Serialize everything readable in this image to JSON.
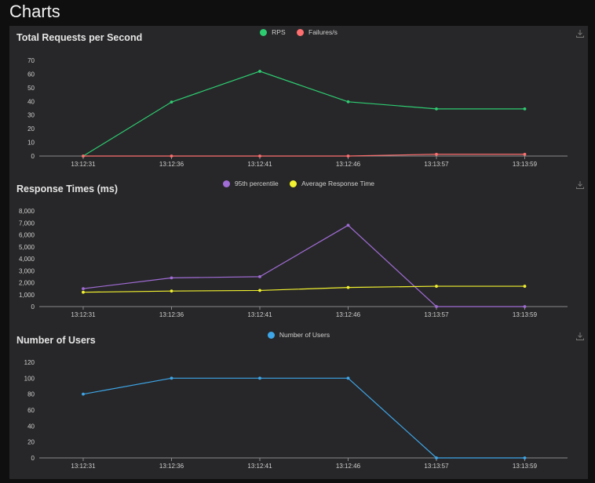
{
  "page": {
    "title": "Charts"
  },
  "colors": {
    "background": "#0f0f10",
    "panel": "#272729",
    "axis": "#8a8a8a",
    "text": "#cfcfcf"
  },
  "chart_data": [
    {
      "type": "line",
      "title": "Total Requests per Second",
      "categories": [
        "13:12:31",
        "13:12:36",
        "13:12:41",
        "13:12:46",
        "13:13:57",
        "13:13:59"
      ],
      "series": [
        {
          "name": "RPS",
          "color": "#2ecc71",
          "values": [
            0,
            39.5,
            62,
            39.7,
            34.5,
            34.5
          ]
        },
        {
          "name": "Failures/s",
          "color": "#ff6f6f",
          "values": [
            0,
            0,
            0,
            0,
            1.3,
            1.3
          ]
        }
      ],
      "yticks": [
        0,
        10,
        20,
        30,
        40,
        50,
        60,
        70
      ],
      "ylim": [
        0,
        70
      ],
      "grid": false,
      "legend": "top-center"
    },
    {
      "type": "line",
      "title": "Response Times (ms)",
      "categories": [
        "13:12:31",
        "13:12:36",
        "13:12:41",
        "13:12:46",
        "13:13:57",
        "13:13:59"
      ],
      "series": [
        {
          "name": "95th percentile",
          "color": "#a06cd5",
          "values": [
            1500,
            2400,
            2500,
            6800,
            0,
            0
          ]
        },
        {
          "name": "Average Response Time",
          "color": "#f2f230",
          "values": [
            1200,
            1300,
            1350,
            1600,
            1700,
            1700
          ]
        }
      ],
      "yticks": [
        0,
        1000,
        2000,
        3000,
        4000,
        5000,
        6000,
        7000,
        8000
      ],
      "ytick_labels": [
        "0",
        "1,000",
        "2,000",
        "3,000",
        "4,000",
        "5,000",
        "6,000",
        "7,000",
        "8,000"
      ],
      "ylim": [
        0,
        8000
      ],
      "grid": false,
      "legend": "top-center"
    },
    {
      "type": "line",
      "title": "Number of Users",
      "categories": [
        "13:12:31",
        "13:12:36",
        "13:12:41",
        "13:12:46",
        "13:13:57",
        "13:13:59"
      ],
      "series": [
        {
          "name": "Number of Users",
          "color": "#3ea6e8",
          "values": [
            80,
            100,
            100,
            100,
            0,
            0
          ]
        }
      ],
      "yticks": [
        0,
        20,
        40,
        60,
        80,
        100,
        120
      ],
      "ylim": [
        0,
        120
      ],
      "grid": false,
      "legend": "top-center"
    }
  ]
}
